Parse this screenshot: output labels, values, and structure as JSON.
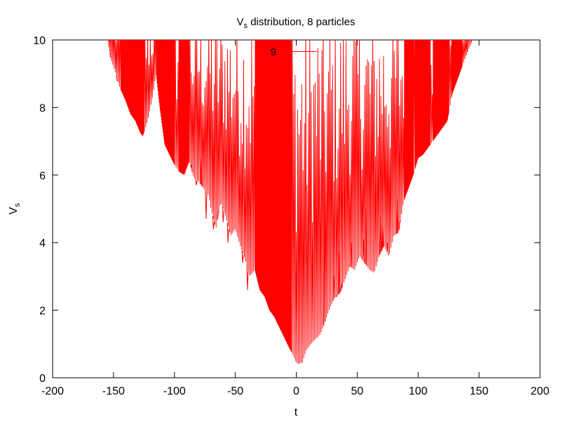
{
  "chart_data": {
    "type": "line",
    "title": {
      "main": "V",
      "sub": "s",
      "rest": " distribution, 8 particles"
    },
    "xlabel": "t",
    "ylabel": {
      "main": "V",
      "sub": "s"
    },
    "xlim": [
      -200,
      200
    ],
    "ylim": [
      0,
      10
    ],
    "xticks": [
      -200,
      -150,
      -100,
      -50,
      0,
      50,
      100,
      150,
      200
    ],
    "yticks": [
      0,
      2,
      4,
      6,
      8,
      10
    ],
    "grid": false,
    "legend": {
      "position": "top-center",
      "entries": [
        {
          "label": "9",
          "color": "#ff0000"
        }
      ]
    },
    "series": [
      {
        "name": "9",
        "color": "#ff0000",
        "envelope_min": [
          [
            -155,
            10
          ],
          [
            -152,
            9.4
          ],
          [
            -148,
            9.0
          ],
          [
            -145,
            8.6
          ],
          [
            -140,
            8.2
          ],
          [
            -136,
            7.8
          ],
          [
            -132,
            7.6
          ],
          [
            -128,
            7.25
          ],
          [
            -126,
            7.15
          ],
          [
            -122,
            7.6
          ],
          [
            -118,
            8.3
          ],
          [
            -115,
            9.0
          ],
          [
            -112,
            8.0
          ],
          [
            -108,
            6.9
          ],
          [
            -104,
            6.6
          ],
          [
            -100,
            6.3
          ],
          [
            -96,
            6.1
          ],
          [
            -92,
            6.0
          ],
          [
            -88,
            6.4
          ],
          [
            -84,
            5.9
          ],
          [
            -80,
            5.8
          ],
          [
            -76,
            5.6
          ],
          [
            -72,
            5.4
          ],
          [
            -70,
            5.0
          ],
          [
            -66,
            4.4
          ],
          [
            -62,
            5.2
          ],
          [
            -58,
            4.8
          ],
          [
            -54,
            4.2
          ],
          [
            -50,
            4.4
          ],
          [
            -46,
            3.9
          ],
          [
            -42,
            3.5
          ],
          [
            -38,
            3.0
          ],
          [
            -34,
            3.2
          ],
          [
            -30,
            2.6
          ],
          [
            -26,
            2.4
          ],
          [
            -22,
            2.0
          ],
          [
            -18,
            1.8
          ],
          [
            -14,
            1.5
          ],
          [
            -10,
            1.2
          ],
          [
            -6,
            0.9
          ],
          [
            -3,
            0.7
          ],
          [
            0,
            0.45
          ],
          [
            2,
            0.4
          ],
          [
            5,
            0.45
          ],
          [
            8,
            0.8
          ],
          [
            12,
            1.0
          ],
          [
            16,
            1.15
          ],
          [
            20,
            1.3
          ],
          [
            24,
            1.7
          ],
          [
            28,
            2.1
          ],
          [
            32,
            2.4
          ],
          [
            36,
            2.5
          ],
          [
            40,
            2.9
          ],
          [
            44,
            3.3
          ],
          [
            48,
            3.2
          ],
          [
            52,
            3.6
          ],
          [
            56,
            3.4
          ],
          [
            60,
            3.2
          ],
          [
            64,
            3.1
          ],
          [
            68,
            3.6
          ],
          [
            72,
            3.9
          ],
          [
            76,
            3.6
          ],
          [
            80,
            4.2
          ],
          [
            84,
            4.3
          ],
          [
            88,
            5.2
          ],
          [
            92,
            5.6
          ],
          [
            96,
            6.0
          ],
          [
            100,
            6.5
          ],
          [
            104,
            6.6
          ],
          [
            108,
            6.8
          ],
          [
            112,
            7.0
          ],
          [
            116,
            7.2
          ],
          [
            120,
            7.4
          ],
          [
            124,
            7.6
          ],
          [
            128,
            8.4
          ],
          [
            132,
            8.8
          ],
          [
            136,
            9.2
          ],
          [
            140,
            9.6
          ],
          [
            145,
            10
          ]
        ],
        "dense_bands": [
          [
            -145,
            -125
          ],
          [
            -115,
            -100
          ],
          [
            -97,
            -88
          ],
          [
            -34,
            -14
          ],
          [
            -14,
            -4
          ],
          [
            88,
            96
          ],
          [
            97,
            110
          ],
          [
            112,
            125
          ],
          [
            127,
            136
          ]
        ],
        "isolated_spikes": [
          [
            -153,
            9.7
          ],
          [
            -147,
            8.8
          ],
          [
            -95,
            7.5
          ],
          [
            -86,
            6.3
          ],
          [
            -82,
            5.7
          ],
          [
            -78,
            6.5
          ],
          [
            -74,
            4.7
          ],
          [
            -68,
            4.4
          ],
          [
            -64,
            4.9
          ],
          [
            -60,
            4.6
          ],
          [
            -56,
            4.0
          ],
          [
            -44,
            3.4
          ],
          [
            -40,
            2.6
          ],
          [
            23,
            5.9
          ],
          [
            31,
            3.0
          ],
          [
            33,
            2.4
          ],
          [
            35,
            3.7
          ],
          [
            37,
            2.8
          ],
          [
            45,
            4.0
          ],
          [
            55,
            4.1
          ],
          [
            57,
            5.0
          ],
          [
            69,
            4.8
          ],
          [
            71,
            4.5
          ],
          [
            75,
            4.0
          ],
          [
            83,
            5.3
          ],
          [
            85,
            4.6
          ],
          [
            134,
            9.5
          ],
          [
            140,
            10
          ]
        ]
      }
    ]
  }
}
